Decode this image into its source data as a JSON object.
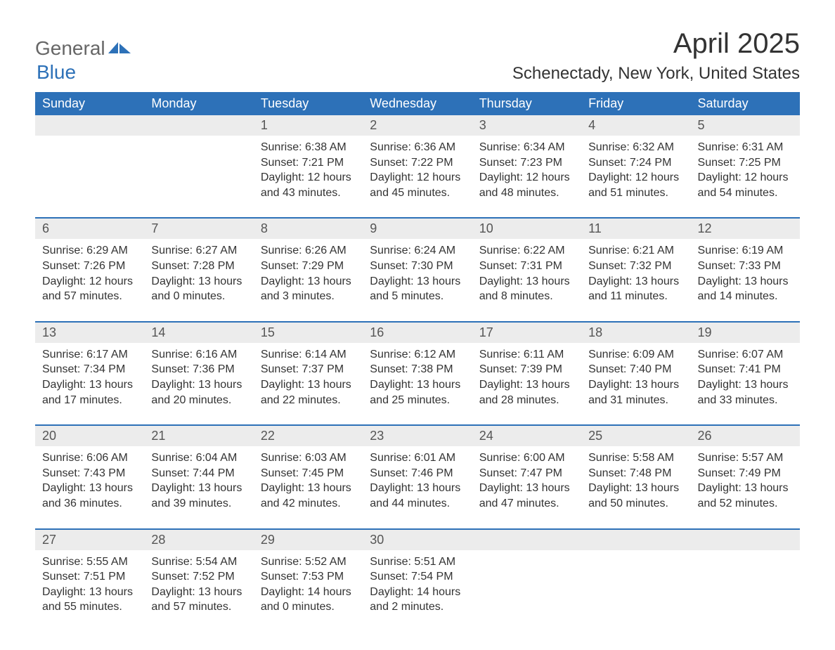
{
  "logo": {
    "part1": "General",
    "part2": "Blue"
  },
  "title": "April 2025",
  "subtitle": "Schenectady, New York, United States",
  "colors": {
    "header_bg": "#2d71b8",
    "header_text": "#ffffff",
    "daynum_bg": "#ececec",
    "body_text": "#333333",
    "logo_gray": "#666666",
    "logo_blue": "#2d71b8",
    "page_bg": "#ffffff"
  },
  "weekdays": [
    "Sunday",
    "Monday",
    "Tuesday",
    "Wednesday",
    "Thursday",
    "Friday",
    "Saturday"
  ],
  "weeks": [
    [
      null,
      null,
      {
        "day": "1",
        "sunrise": "Sunrise: 6:38 AM",
        "sunset": "Sunset: 7:21 PM",
        "daylight1": "Daylight: 12 hours",
        "daylight2": "and 43 minutes."
      },
      {
        "day": "2",
        "sunrise": "Sunrise: 6:36 AM",
        "sunset": "Sunset: 7:22 PM",
        "daylight1": "Daylight: 12 hours",
        "daylight2": "and 45 minutes."
      },
      {
        "day": "3",
        "sunrise": "Sunrise: 6:34 AM",
        "sunset": "Sunset: 7:23 PM",
        "daylight1": "Daylight: 12 hours",
        "daylight2": "and 48 minutes."
      },
      {
        "day": "4",
        "sunrise": "Sunrise: 6:32 AM",
        "sunset": "Sunset: 7:24 PM",
        "daylight1": "Daylight: 12 hours",
        "daylight2": "and 51 minutes."
      },
      {
        "day": "5",
        "sunrise": "Sunrise: 6:31 AM",
        "sunset": "Sunset: 7:25 PM",
        "daylight1": "Daylight: 12 hours",
        "daylight2": "and 54 minutes."
      }
    ],
    [
      {
        "day": "6",
        "sunrise": "Sunrise: 6:29 AM",
        "sunset": "Sunset: 7:26 PM",
        "daylight1": "Daylight: 12 hours",
        "daylight2": "and 57 minutes."
      },
      {
        "day": "7",
        "sunrise": "Sunrise: 6:27 AM",
        "sunset": "Sunset: 7:28 PM",
        "daylight1": "Daylight: 13 hours",
        "daylight2": "and 0 minutes."
      },
      {
        "day": "8",
        "sunrise": "Sunrise: 6:26 AM",
        "sunset": "Sunset: 7:29 PM",
        "daylight1": "Daylight: 13 hours",
        "daylight2": "and 3 minutes."
      },
      {
        "day": "9",
        "sunrise": "Sunrise: 6:24 AM",
        "sunset": "Sunset: 7:30 PM",
        "daylight1": "Daylight: 13 hours",
        "daylight2": "and 5 minutes."
      },
      {
        "day": "10",
        "sunrise": "Sunrise: 6:22 AM",
        "sunset": "Sunset: 7:31 PM",
        "daylight1": "Daylight: 13 hours",
        "daylight2": "and 8 minutes."
      },
      {
        "day": "11",
        "sunrise": "Sunrise: 6:21 AM",
        "sunset": "Sunset: 7:32 PM",
        "daylight1": "Daylight: 13 hours",
        "daylight2": "and 11 minutes."
      },
      {
        "day": "12",
        "sunrise": "Sunrise: 6:19 AM",
        "sunset": "Sunset: 7:33 PM",
        "daylight1": "Daylight: 13 hours",
        "daylight2": "and 14 minutes."
      }
    ],
    [
      {
        "day": "13",
        "sunrise": "Sunrise: 6:17 AM",
        "sunset": "Sunset: 7:34 PM",
        "daylight1": "Daylight: 13 hours",
        "daylight2": "and 17 minutes."
      },
      {
        "day": "14",
        "sunrise": "Sunrise: 6:16 AM",
        "sunset": "Sunset: 7:36 PM",
        "daylight1": "Daylight: 13 hours",
        "daylight2": "and 20 minutes."
      },
      {
        "day": "15",
        "sunrise": "Sunrise: 6:14 AM",
        "sunset": "Sunset: 7:37 PM",
        "daylight1": "Daylight: 13 hours",
        "daylight2": "and 22 minutes."
      },
      {
        "day": "16",
        "sunrise": "Sunrise: 6:12 AM",
        "sunset": "Sunset: 7:38 PM",
        "daylight1": "Daylight: 13 hours",
        "daylight2": "and 25 minutes."
      },
      {
        "day": "17",
        "sunrise": "Sunrise: 6:11 AM",
        "sunset": "Sunset: 7:39 PM",
        "daylight1": "Daylight: 13 hours",
        "daylight2": "and 28 minutes."
      },
      {
        "day": "18",
        "sunrise": "Sunrise: 6:09 AM",
        "sunset": "Sunset: 7:40 PM",
        "daylight1": "Daylight: 13 hours",
        "daylight2": "and 31 minutes."
      },
      {
        "day": "19",
        "sunrise": "Sunrise: 6:07 AM",
        "sunset": "Sunset: 7:41 PM",
        "daylight1": "Daylight: 13 hours",
        "daylight2": "and 33 minutes."
      }
    ],
    [
      {
        "day": "20",
        "sunrise": "Sunrise: 6:06 AM",
        "sunset": "Sunset: 7:43 PM",
        "daylight1": "Daylight: 13 hours",
        "daylight2": "and 36 minutes."
      },
      {
        "day": "21",
        "sunrise": "Sunrise: 6:04 AM",
        "sunset": "Sunset: 7:44 PM",
        "daylight1": "Daylight: 13 hours",
        "daylight2": "and 39 minutes."
      },
      {
        "day": "22",
        "sunrise": "Sunrise: 6:03 AM",
        "sunset": "Sunset: 7:45 PM",
        "daylight1": "Daylight: 13 hours",
        "daylight2": "and 42 minutes."
      },
      {
        "day": "23",
        "sunrise": "Sunrise: 6:01 AM",
        "sunset": "Sunset: 7:46 PM",
        "daylight1": "Daylight: 13 hours",
        "daylight2": "and 44 minutes."
      },
      {
        "day": "24",
        "sunrise": "Sunrise: 6:00 AM",
        "sunset": "Sunset: 7:47 PM",
        "daylight1": "Daylight: 13 hours",
        "daylight2": "and 47 minutes."
      },
      {
        "day": "25",
        "sunrise": "Sunrise: 5:58 AM",
        "sunset": "Sunset: 7:48 PM",
        "daylight1": "Daylight: 13 hours",
        "daylight2": "and 50 minutes."
      },
      {
        "day": "26",
        "sunrise": "Sunrise: 5:57 AM",
        "sunset": "Sunset: 7:49 PM",
        "daylight1": "Daylight: 13 hours",
        "daylight2": "and 52 minutes."
      }
    ],
    [
      {
        "day": "27",
        "sunrise": "Sunrise: 5:55 AM",
        "sunset": "Sunset: 7:51 PM",
        "daylight1": "Daylight: 13 hours",
        "daylight2": "and 55 minutes."
      },
      {
        "day": "28",
        "sunrise": "Sunrise: 5:54 AM",
        "sunset": "Sunset: 7:52 PM",
        "daylight1": "Daylight: 13 hours",
        "daylight2": "and 57 minutes."
      },
      {
        "day": "29",
        "sunrise": "Sunrise: 5:52 AM",
        "sunset": "Sunset: 7:53 PM",
        "daylight1": "Daylight: 14 hours",
        "daylight2": "and 0 minutes."
      },
      {
        "day": "30",
        "sunrise": "Sunrise: 5:51 AM",
        "sunset": "Sunset: 7:54 PM",
        "daylight1": "Daylight: 14 hours",
        "daylight2": "and 2 minutes."
      },
      null,
      null,
      null
    ]
  ]
}
